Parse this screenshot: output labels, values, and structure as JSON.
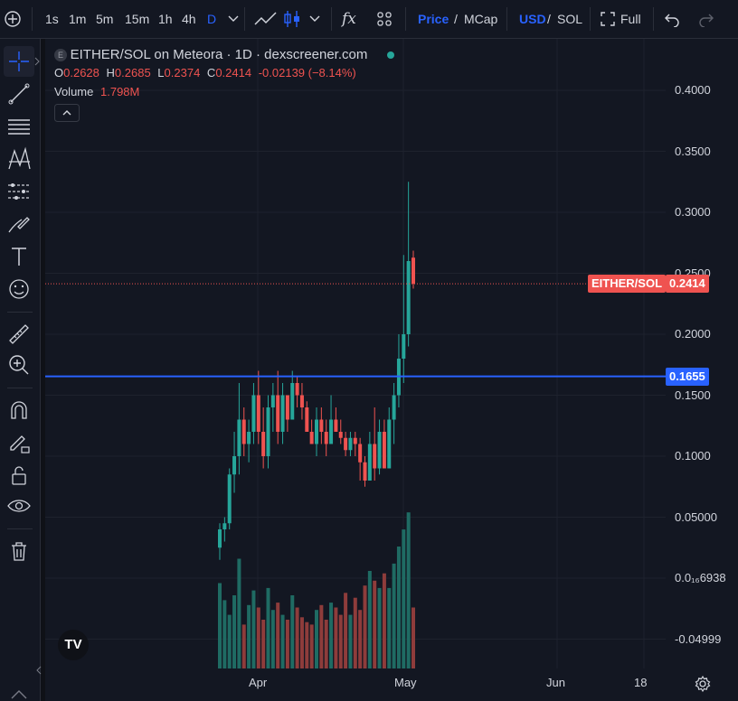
{
  "toolbar": {
    "intervals": [
      "1s",
      "1m",
      "5m",
      "15m",
      "1h",
      "4h",
      "D"
    ],
    "active_interval": "D",
    "price_label": "Price",
    "mcap_label": "MCap",
    "slash": "/",
    "usd_label": "USD",
    "sol_label": "SOL",
    "full_label": "Full",
    "fx_label": "fx"
  },
  "left_tools": [
    "crosshair-icon",
    "trend-line-icon",
    "fib-icon",
    "pattern-icon",
    "forecast-icon",
    "brush-icon",
    "text-icon",
    "emoji-icon",
    "ruler-icon",
    "zoom-in-icon",
    "magnet-icon",
    "lock-draw-icon",
    "lock-icon",
    "eye-icon",
    "trash-icon"
  ],
  "legend": {
    "symbol_badge": "E",
    "title": "EITHER/SOL on Meteora · 1D · dexscreener.com",
    "o_label": "O",
    "o_value": "0.2628",
    "h_label": "H",
    "h_value": "0.2685",
    "l_label": "L",
    "l_value": "0.2374",
    "c_label": "C",
    "c_value": "0.2414",
    "change": "-0.02139 (−8.14%)",
    "volume_label": "Volume",
    "volume_value": "1.798M",
    "collapse": "^"
  },
  "price_axis": {
    "ticks": [
      "0.4000",
      "0.3500",
      "0.3000",
      "0.2500",
      "0.2000",
      "0.1500",
      "0.1000",
      "0.05000",
      "0.0₁₆6938",
      "-0.04999"
    ],
    "tick_values": [
      0.4,
      0.35,
      0.3,
      0.25,
      0.2,
      0.15,
      0.1,
      0.05,
      0.0,
      -0.05
    ],
    "last_price": "0.2414",
    "last_price_value": 0.2414,
    "pair_label": "EITHER/SOL",
    "line_price": "0.1655",
    "line_price_value": 0.1655
  },
  "time_axis": {
    "labels": [
      "Apr",
      "May",
      "Jun",
      "18"
    ]
  },
  "colors": {
    "up": "#26a69a",
    "down": "#ef5350",
    "line": "#2962ff",
    "bg": "#131722"
  },
  "watermark": "TV",
  "chart_data": {
    "type": "candlestick",
    "x_start": "2024-03-25",
    "interval": "1D",
    "price_range": [
      -0.05,
      0.4
    ],
    "candles": [
      [
        0.025,
        0.045,
        0.015,
        0.04
      ],
      [
        0.04,
        0.05,
        0.03,
        0.045
      ],
      [
        0.045,
        0.09,
        0.04,
        0.085
      ],
      [
        0.085,
        0.12,
        0.07,
        0.1
      ],
      [
        0.1,
        0.16,
        0.085,
        0.13
      ],
      [
        0.13,
        0.14,
        0.1,
        0.11
      ],
      [
        0.11,
        0.13,
        0.095,
        0.12
      ],
      [
        0.12,
        0.16,
        0.11,
        0.15
      ],
      [
        0.15,
        0.17,
        0.11,
        0.12
      ],
      [
        0.12,
        0.14,
        0.09,
        0.1
      ],
      [
        0.1,
        0.15,
        0.09,
        0.14
      ],
      [
        0.14,
        0.16,
        0.12,
        0.15
      ],
      [
        0.15,
        0.17,
        0.11,
        0.12
      ],
      [
        0.12,
        0.16,
        0.11,
        0.15
      ],
      [
        0.15,
        0.15,
        0.12,
        0.13
      ],
      [
        0.13,
        0.17,
        0.13,
        0.16
      ],
      [
        0.16,
        0.165,
        0.14,
        0.15
      ],
      [
        0.15,
        0.16,
        0.13,
        0.14
      ],
      [
        0.14,
        0.145,
        0.12,
        0.12
      ],
      [
        0.12,
        0.13,
        0.11,
        0.11
      ],
      [
        0.11,
        0.14,
        0.1,
        0.13
      ],
      [
        0.13,
        0.14,
        0.11,
        0.12
      ],
      [
        0.12,
        0.13,
        0.1,
        0.11
      ],
      [
        0.11,
        0.15,
        0.11,
        0.13
      ],
      [
        0.13,
        0.14,
        0.12,
        0.12
      ],
      [
        0.12,
        0.13,
        0.11,
        0.115
      ],
      [
        0.115,
        0.12,
        0.1,
        0.105
      ],
      [
        0.105,
        0.12,
        0.1,
        0.115
      ],
      [
        0.115,
        0.12,
        0.1,
        0.11
      ],
      [
        0.11,
        0.115,
        0.08,
        0.095
      ],
      [
        0.095,
        0.1,
        0.075,
        0.08
      ],
      [
        0.08,
        0.12,
        0.08,
        0.11
      ],
      [
        0.11,
        0.14,
        0.08,
        0.09
      ],
      [
        0.09,
        0.13,
        0.085,
        0.12
      ],
      [
        0.12,
        0.13,
        0.09,
        0.09
      ],
      [
        0.09,
        0.14,
        0.09,
        0.13
      ],
      [
        0.13,
        0.16,
        0.11,
        0.15
      ],
      [
        0.15,
        0.2,
        0.14,
        0.18
      ],
      [
        0.18,
        0.265,
        0.16,
        0.2
      ],
      [
        0.2,
        0.325,
        0.19,
        0.26
      ],
      [
        0.2628,
        0.2685,
        0.2374,
        0.2414
      ]
    ],
    "volume": [
      35,
      28,
      22,
      30,
      45,
      18,
      26,
      32,
      25,
      20,
      33,
      24,
      27,
      22,
      20,
      30,
      25,
      21,
      19,
      18,
      24,
      26,
      20,
      27,
      25,
      22,
      31,
      22,
      29,
      24,
      34,
      40,
      36,
      33,
      39,
      33,
      43,
      50,
      57,
      64,
      25
    ]
  }
}
